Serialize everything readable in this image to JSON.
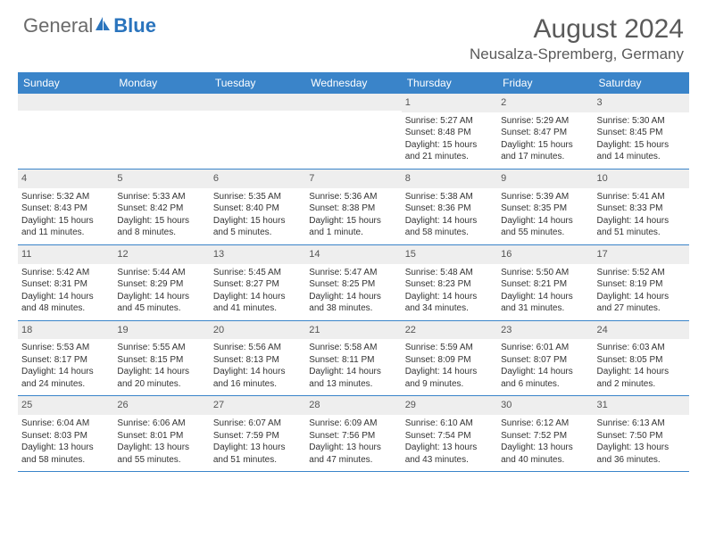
{
  "brand": {
    "text1": "General",
    "text2": "Blue",
    "icon_color": "#2a74bd"
  },
  "header": {
    "title": "August 2024",
    "location": "Neusalza-Spremberg, Germany"
  },
  "colors": {
    "header_bg": "#3a84c9",
    "header_text": "#ffffff",
    "daynum_bg": "#eeeeee",
    "border": "#3a84c9",
    "body_text": "#333333"
  },
  "weekdays": [
    "Sunday",
    "Monday",
    "Tuesday",
    "Wednesday",
    "Thursday",
    "Friday",
    "Saturday"
  ],
  "weeks": [
    [
      {
        "n": "",
        "sr": "",
        "ss": "",
        "dl1": "",
        "dl2": ""
      },
      {
        "n": "",
        "sr": "",
        "ss": "",
        "dl1": "",
        "dl2": ""
      },
      {
        "n": "",
        "sr": "",
        "ss": "",
        "dl1": "",
        "dl2": ""
      },
      {
        "n": "",
        "sr": "",
        "ss": "",
        "dl1": "",
        "dl2": ""
      },
      {
        "n": "1",
        "sr": "Sunrise: 5:27 AM",
        "ss": "Sunset: 8:48 PM",
        "dl1": "Daylight: 15 hours",
        "dl2": "and 21 minutes."
      },
      {
        "n": "2",
        "sr": "Sunrise: 5:29 AM",
        "ss": "Sunset: 8:47 PM",
        "dl1": "Daylight: 15 hours",
        "dl2": "and 17 minutes."
      },
      {
        "n": "3",
        "sr": "Sunrise: 5:30 AM",
        "ss": "Sunset: 8:45 PM",
        "dl1": "Daylight: 15 hours",
        "dl2": "and 14 minutes."
      }
    ],
    [
      {
        "n": "4",
        "sr": "Sunrise: 5:32 AM",
        "ss": "Sunset: 8:43 PM",
        "dl1": "Daylight: 15 hours",
        "dl2": "and 11 minutes."
      },
      {
        "n": "5",
        "sr": "Sunrise: 5:33 AM",
        "ss": "Sunset: 8:42 PM",
        "dl1": "Daylight: 15 hours",
        "dl2": "and 8 minutes."
      },
      {
        "n": "6",
        "sr": "Sunrise: 5:35 AM",
        "ss": "Sunset: 8:40 PM",
        "dl1": "Daylight: 15 hours",
        "dl2": "and 5 minutes."
      },
      {
        "n": "7",
        "sr": "Sunrise: 5:36 AM",
        "ss": "Sunset: 8:38 PM",
        "dl1": "Daylight: 15 hours",
        "dl2": "and 1 minute."
      },
      {
        "n": "8",
        "sr": "Sunrise: 5:38 AM",
        "ss": "Sunset: 8:36 PM",
        "dl1": "Daylight: 14 hours",
        "dl2": "and 58 minutes."
      },
      {
        "n": "9",
        "sr": "Sunrise: 5:39 AM",
        "ss": "Sunset: 8:35 PM",
        "dl1": "Daylight: 14 hours",
        "dl2": "and 55 minutes."
      },
      {
        "n": "10",
        "sr": "Sunrise: 5:41 AM",
        "ss": "Sunset: 8:33 PM",
        "dl1": "Daylight: 14 hours",
        "dl2": "and 51 minutes."
      }
    ],
    [
      {
        "n": "11",
        "sr": "Sunrise: 5:42 AM",
        "ss": "Sunset: 8:31 PM",
        "dl1": "Daylight: 14 hours",
        "dl2": "and 48 minutes."
      },
      {
        "n": "12",
        "sr": "Sunrise: 5:44 AM",
        "ss": "Sunset: 8:29 PM",
        "dl1": "Daylight: 14 hours",
        "dl2": "and 45 minutes."
      },
      {
        "n": "13",
        "sr": "Sunrise: 5:45 AM",
        "ss": "Sunset: 8:27 PM",
        "dl1": "Daylight: 14 hours",
        "dl2": "and 41 minutes."
      },
      {
        "n": "14",
        "sr": "Sunrise: 5:47 AM",
        "ss": "Sunset: 8:25 PM",
        "dl1": "Daylight: 14 hours",
        "dl2": "and 38 minutes."
      },
      {
        "n": "15",
        "sr": "Sunrise: 5:48 AM",
        "ss": "Sunset: 8:23 PM",
        "dl1": "Daylight: 14 hours",
        "dl2": "and 34 minutes."
      },
      {
        "n": "16",
        "sr": "Sunrise: 5:50 AM",
        "ss": "Sunset: 8:21 PM",
        "dl1": "Daylight: 14 hours",
        "dl2": "and 31 minutes."
      },
      {
        "n": "17",
        "sr": "Sunrise: 5:52 AM",
        "ss": "Sunset: 8:19 PM",
        "dl1": "Daylight: 14 hours",
        "dl2": "and 27 minutes."
      }
    ],
    [
      {
        "n": "18",
        "sr": "Sunrise: 5:53 AM",
        "ss": "Sunset: 8:17 PM",
        "dl1": "Daylight: 14 hours",
        "dl2": "and 24 minutes."
      },
      {
        "n": "19",
        "sr": "Sunrise: 5:55 AM",
        "ss": "Sunset: 8:15 PM",
        "dl1": "Daylight: 14 hours",
        "dl2": "and 20 minutes."
      },
      {
        "n": "20",
        "sr": "Sunrise: 5:56 AM",
        "ss": "Sunset: 8:13 PM",
        "dl1": "Daylight: 14 hours",
        "dl2": "and 16 minutes."
      },
      {
        "n": "21",
        "sr": "Sunrise: 5:58 AM",
        "ss": "Sunset: 8:11 PM",
        "dl1": "Daylight: 14 hours",
        "dl2": "and 13 minutes."
      },
      {
        "n": "22",
        "sr": "Sunrise: 5:59 AM",
        "ss": "Sunset: 8:09 PM",
        "dl1": "Daylight: 14 hours",
        "dl2": "and 9 minutes."
      },
      {
        "n": "23",
        "sr": "Sunrise: 6:01 AM",
        "ss": "Sunset: 8:07 PM",
        "dl1": "Daylight: 14 hours",
        "dl2": "and 6 minutes."
      },
      {
        "n": "24",
        "sr": "Sunrise: 6:03 AM",
        "ss": "Sunset: 8:05 PM",
        "dl1": "Daylight: 14 hours",
        "dl2": "and 2 minutes."
      }
    ],
    [
      {
        "n": "25",
        "sr": "Sunrise: 6:04 AM",
        "ss": "Sunset: 8:03 PM",
        "dl1": "Daylight: 13 hours",
        "dl2": "and 58 minutes."
      },
      {
        "n": "26",
        "sr": "Sunrise: 6:06 AM",
        "ss": "Sunset: 8:01 PM",
        "dl1": "Daylight: 13 hours",
        "dl2": "and 55 minutes."
      },
      {
        "n": "27",
        "sr": "Sunrise: 6:07 AM",
        "ss": "Sunset: 7:59 PM",
        "dl1": "Daylight: 13 hours",
        "dl2": "and 51 minutes."
      },
      {
        "n": "28",
        "sr": "Sunrise: 6:09 AM",
        "ss": "Sunset: 7:56 PM",
        "dl1": "Daylight: 13 hours",
        "dl2": "and 47 minutes."
      },
      {
        "n": "29",
        "sr": "Sunrise: 6:10 AM",
        "ss": "Sunset: 7:54 PM",
        "dl1": "Daylight: 13 hours",
        "dl2": "and 43 minutes."
      },
      {
        "n": "30",
        "sr": "Sunrise: 6:12 AM",
        "ss": "Sunset: 7:52 PM",
        "dl1": "Daylight: 13 hours",
        "dl2": "and 40 minutes."
      },
      {
        "n": "31",
        "sr": "Sunrise: 6:13 AM",
        "ss": "Sunset: 7:50 PM",
        "dl1": "Daylight: 13 hours",
        "dl2": "and 36 minutes."
      }
    ]
  ]
}
